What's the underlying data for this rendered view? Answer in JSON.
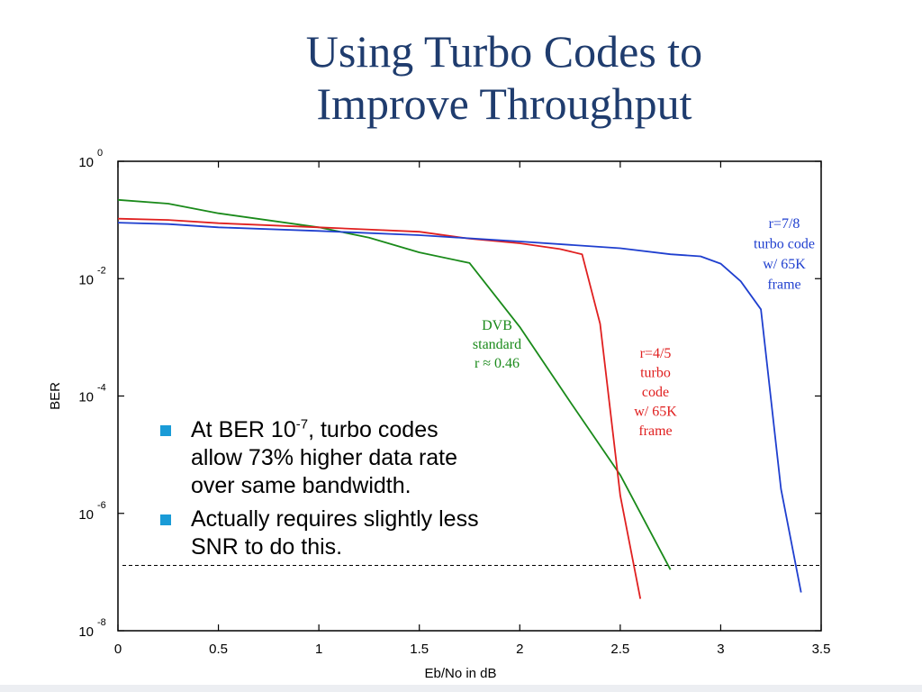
{
  "slide": {
    "title_line1": "Using Turbo Codes to",
    "title_line2": "Improve Throughput",
    "bullets": [
      {
        "prefix": "At BER 10",
        "sup": "-7",
        "suffix": ", turbo codes allow 73% higher data rate over same bandwidth."
      },
      {
        "prefix": "Actually requires slightly less SNR to do this.",
        "sup": "",
        "suffix": ""
      }
    ],
    "bullet_color": "#1a9bd7",
    "title_color": "#1f3c6e"
  },
  "chart_data": {
    "type": "line",
    "title": "",
    "xlabel": "Eb/No in dB",
    "ylabel": "BER",
    "xlim": [
      0,
      3.5
    ],
    "ylim_exp": [
      -8,
      0
    ],
    "yscale": "log",
    "grid": false,
    "x_ticks": [
      "0",
      "0.5",
      "1",
      "1.5",
      "2",
      "2.5",
      "3",
      "3.5"
    ],
    "y_ticks": [
      {
        "base": "10",
        "exp": "0"
      },
      {
        "base": "10",
        "exp": "-2"
      },
      {
        "base": "10",
        "exp": "-4"
      },
      {
        "base": "10",
        "exp": "-6"
      },
      {
        "base": "10",
        "exp": "-8"
      }
    ],
    "reference_line": {
      "y": 1.3e-07,
      "style": "dashed"
    },
    "series": [
      {
        "id": "dvb",
        "label_lines": [
          "DVB",
          "standard",
          "r ≈ 0.46"
        ],
        "color": "#1a8a1a",
        "points": [
          [
            0,
            0.22
          ],
          [
            0.25,
            0.19
          ],
          [
            0.5,
            0.13
          ],
          [
            1.0,
            0.075
          ],
          [
            1.25,
            0.05
          ],
          [
            1.5,
            0.028
          ],
          [
            1.75,
            0.0185
          ],
          [
            2.0,
            0.0015
          ],
          [
            2.25,
            8e-05
          ],
          [
            2.5,
            4.5e-06
          ],
          [
            2.75,
            1.1e-07
          ]
        ]
      },
      {
        "id": "r45",
        "label_lines": [
          "r=4/5",
          "turbo",
          "code",
          "w/ 65K",
          "frame"
        ],
        "color": "#e02020",
        "points": [
          [
            0,
            0.105
          ],
          [
            0.25,
            0.1
          ],
          [
            0.5,
            0.088
          ],
          [
            1.0,
            0.075
          ],
          [
            1.5,
            0.063
          ],
          [
            1.75,
            0.048
          ],
          [
            2.0,
            0.04
          ],
          [
            2.2,
            0.032
          ],
          [
            2.31,
            0.026
          ],
          [
            2.4,
            0.0017
          ],
          [
            2.5,
            2e-06
          ],
          [
            2.6,
            3.5e-08
          ]
        ]
      },
      {
        "id": "r78",
        "label_lines": [
          "r=7/8",
          "turbo code",
          "w/ 65K",
          "frame"
        ],
        "color": "#1f3fcf",
        "points": [
          [
            0,
            0.09
          ],
          [
            0.25,
            0.085
          ],
          [
            0.5,
            0.075
          ],
          [
            1.0,
            0.065
          ],
          [
            1.5,
            0.055
          ],
          [
            2.0,
            0.043
          ],
          [
            2.5,
            0.033
          ],
          [
            2.75,
            0.026
          ],
          [
            2.9,
            0.024
          ],
          [
            3.0,
            0.018
          ],
          [
            3.1,
            0.009
          ],
          [
            3.2,
            0.003
          ],
          [
            3.3,
            2.6e-06
          ],
          [
            3.4,
            4.5e-08
          ]
        ]
      }
    ]
  }
}
